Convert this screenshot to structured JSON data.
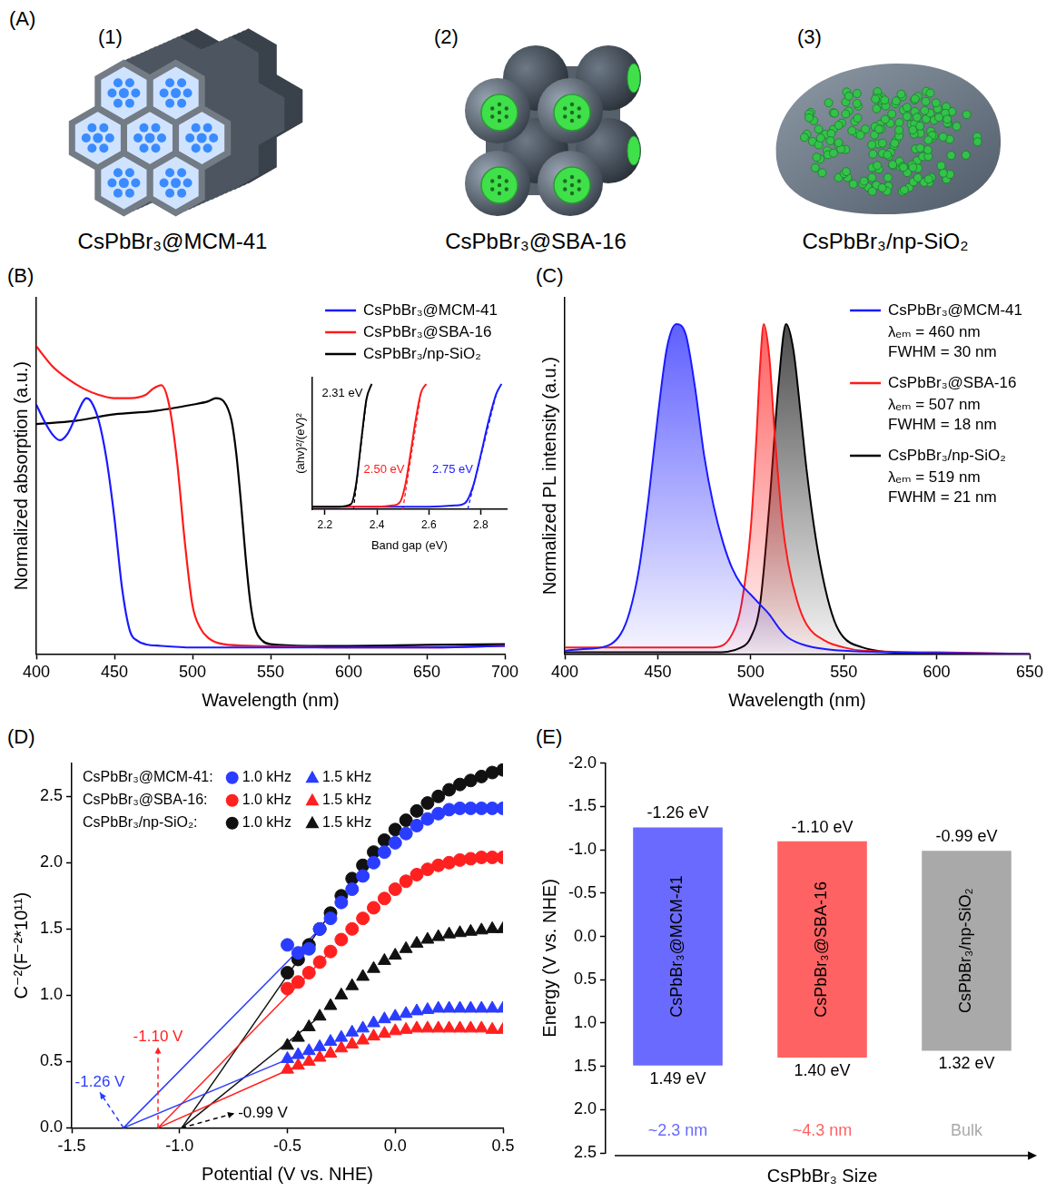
{
  "diagram": {
    "panel_label": "(A)",
    "items": [
      {
        "number": "(1)",
        "caption": "CsPbBr₃@MCM-41"
      },
      {
        "number": "(2)",
        "caption": "CsPbBr₃@SBA-16"
      },
      {
        "number": "(3)",
        "caption": "CsPbBr₃/np-SiO₂"
      }
    ]
  },
  "chart_data": [
    {
      "panel_label": "(B)",
      "type": "line",
      "x_label": "Wavelength (nm)",
      "y_label": "Normalized absorption (a.u.)",
      "xlim": [
        400,
        700
      ],
      "xticks": [
        400,
        450,
        500,
        550,
        600,
        650,
        700
      ],
      "ylim": [
        0,
        1.1
      ],
      "tick_labels": "x",
      "grid": false,
      "legend": "upper right",
      "series": [
        {
          "name": "CsPbBr₃@MCM-41",
          "color": "#1a1aff",
          "x": [
            400,
            405,
            410,
            415,
            420,
            425,
            430,
            432,
            435,
            440,
            445,
            450,
            455,
            460,
            465,
            470,
            480,
            500,
            550,
            600,
            650,
            700
          ],
          "values": [
            0.77,
            0.72,
            0.68,
            0.66,
            0.68,
            0.73,
            0.78,
            0.79,
            0.78,
            0.72,
            0.6,
            0.42,
            0.2,
            0.07,
            0.04,
            0.03,
            0.025,
            0.02,
            0.02,
            0.02,
            0.02,
            0.025
          ]
        },
        {
          "name": "CsPbBr₃@SBA-16",
          "color": "#ff1a1a",
          "x": [
            400,
            410,
            420,
            430,
            440,
            450,
            460,
            470,
            475,
            480,
            485,
            490,
            495,
            500,
            505,
            510,
            520,
            540,
            600,
            650,
            700
          ],
          "values": [
            0.95,
            0.89,
            0.85,
            0.82,
            0.8,
            0.79,
            0.79,
            0.8,
            0.82,
            0.83,
            0.77,
            0.6,
            0.35,
            0.15,
            0.08,
            0.05,
            0.03,
            0.025,
            0.02,
            0.02,
            0.025
          ]
        },
        {
          "name": "CsPbBr₃/np-SiO₂",
          "color": "#000000",
          "x": [
            400,
            425,
            450,
            475,
            500,
            510,
            515,
            520,
            525,
            528,
            531,
            534,
            537,
            540,
            545,
            550,
            575,
            600,
            650,
            700
          ],
          "values": [
            0.71,
            0.72,
            0.74,
            0.75,
            0.77,
            0.78,
            0.79,
            0.78,
            0.72,
            0.62,
            0.47,
            0.3,
            0.16,
            0.08,
            0.04,
            0.03,
            0.025,
            0.025,
            0.028,
            0.03
          ]
        }
      ],
      "inset": {
        "type": "line",
        "x_label": "Band gap (eV)",
        "y_label": "(ahν)²/(eV)²",
        "xlim": [
          2.15,
          2.9
        ],
        "xticks": [
          2.2,
          2.4,
          2.6,
          2.8
        ],
        "ylim": [
          0,
          1.05
        ],
        "tick_labels": "x",
        "grid": false,
        "series": [
          {
            "color": "#000000",
            "x": [
              2.15,
              2.2,
              2.25,
              2.3,
              2.32,
              2.34,
              2.36,
              2.38
            ],
            "values": [
              0.02,
              0.02,
              0.02,
              0.04,
              0.2,
              0.55,
              0.88,
              1.0
            ],
            "annotation": {
              "text": "2.31 eV",
              "x": 2.31
            }
          },
          {
            "color": "#ff1a1a",
            "x": [
              2.15,
              2.3,
              2.4,
              2.46,
              2.49,
              2.51,
              2.53,
              2.55,
              2.57,
              2.59
            ],
            "values": [
              0.02,
              0.02,
              0.02,
              0.03,
              0.06,
              0.2,
              0.45,
              0.72,
              0.93,
              1.0
            ],
            "annotation": {
              "text": "2.50 eV",
              "x": 2.5
            }
          },
          {
            "color": "#1a1aff",
            "x": [
              2.15,
              2.4,
              2.6,
              2.7,
              2.74,
              2.77,
              2.8,
              2.83,
              2.86,
              2.88
            ],
            "values": [
              0.02,
              0.02,
              0.02,
              0.03,
              0.05,
              0.18,
              0.43,
              0.7,
              0.92,
              1.0
            ],
            "annotation": {
              "text": "2.75 eV",
              "x": 2.75
            }
          }
        ]
      }
    },
    {
      "panel_label": "(C)",
      "type": "area",
      "x_label": "Wavelength (nm)",
      "y_label": "Normalized PL intensity (a.u.)",
      "xlim": [
        400,
        650
      ],
      "xticks": [
        400,
        450,
        500,
        550,
        600,
        650
      ],
      "ylim": [
        0,
        1.08
      ],
      "tick_labels": "x",
      "grid": false,
      "legend": "upper right",
      "series": [
        {
          "name": "CsPbBr₃@MCM-41",
          "color": "#1a1aff",
          "annotations": [
            "λₑₘ = 460 nm",
            "FWHM = 30 nm"
          ],
          "x": [
            400,
            410,
            420,
            430,
            435,
            440,
            445,
            450,
            455,
            460,
            465,
            470,
            475,
            480,
            485,
            490,
            495,
            500,
            505,
            510,
            515,
            520,
            530,
            540,
            550,
            575,
            600,
            650
          ],
          "values": [
            0.01,
            0.015,
            0.02,
            0.06,
            0.13,
            0.26,
            0.47,
            0.72,
            0.93,
            1.0,
            0.97,
            0.81,
            0.6,
            0.45,
            0.34,
            0.26,
            0.21,
            0.18,
            0.15,
            0.12,
            0.08,
            0.05,
            0.025,
            0.015,
            0.01,
            0.005,
            0.003,
            0.0
          ]
        },
        {
          "name": "CsPbBr₃@SBA-16",
          "color": "#ff1a1a",
          "annotations": [
            "λₑₘ = 507 nm",
            "FWHM = 18 nm"
          ],
          "x": [
            400,
            450,
            480,
            490,
            495,
            500,
            503,
            505,
            507,
            510,
            513,
            517,
            520,
            525,
            530,
            540,
            550,
            560,
            600,
            650
          ],
          "values": [
            0.02,
            0.02,
            0.02,
            0.06,
            0.15,
            0.38,
            0.65,
            0.87,
            1.0,
            0.9,
            0.66,
            0.4,
            0.28,
            0.16,
            0.09,
            0.04,
            0.02,
            0.01,
            0.005,
            0.0
          ]
        },
        {
          "name": "CsPbBr₃/np-SiO₂",
          "color": "#000000",
          "annotations": [
            "λₑₘ = 519 nm",
            "FWHM = 21 nm"
          ],
          "x": [
            400,
            480,
            495,
            500,
            505,
            510,
            515,
            519,
            523,
            527,
            530,
            535,
            540,
            545,
            550,
            560,
            575,
            600,
            650
          ],
          "values": [
            0.005,
            0.005,
            0.02,
            0.05,
            0.15,
            0.45,
            0.82,
            1.0,
            0.92,
            0.72,
            0.56,
            0.35,
            0.2,
            0.1,
            0.05,
            0.02,
            0.005,
            0.0,
            0.0
          ]
        }
      ]
    },
    {
      "panel_label": "(D)",
      "type": "scatter",
      "x_label": "Potential (V vs. NHE)",
      "y_label": "C⁻²(F⁻²*10¹¹)",
      "xlim": [
        -1.5,
        0.5
      ],
      "xticks": [
        -1.5,
        {
          "value": -1,
          "label": "-1.0"
        },
        -0.5,
        {
          "value": 0,
          "label": "0.0"
        },
        0.5
      ],
      "ylim": [
        0,
        2.75
      ],
      "yticks": [
        {
          "value": 0,
          "label": "0.0"
        },
        0.5,
        {
          "value": 1,
          "label": "1.0"
        },
        1.5,
        {
          "value": 2,
          "label": "2.0"
        },
        2.5
      ],
      "grid": false,
      "legend": "upper left",
      "x": [
        -0.5,
        -0.45,
        -0.4,
        -0.35,
        -0.3,
        -0.25,
        -0.2,
        -0.15,
        -0.1,
        -0.05,
        0,
        0.05,
        0.1,
        0.15,
        0.2,
        0.25,
        0.3,
        0.35,
        0.4,
        0.45,
        0.5
      ],
      "series": [
        {
          "group": "CsPbBr₃@MCM-41:",
          "name": "1.0 kHz",
          "marker": "circle",
          "color": "#2a3cff",
          "values": [
            1.38,
            1.32,
            1.35,
            1.5,
            1.58,
            1.7,
            1.8,
            1.9,
            2.0,
            2.08,
            2.15,
            2.22,
            2.28,
            2.33,
            2.37,
            2.4,
            2.41,
            2.41,
            2.41,
            2.41,
            2.41
          ],
          "fit": {
            "x": [
              -1.26,
              -0.35
            ],
            "y": [
              0,
              1.5
            ]
          }
        },
        {
          "group": "CsPbBr₃@MCM-41:",
          "name": "1.5 kHz",
          "marker": "triangle",
          "color": "#2a3cff",
          "values": [
            0.52,
            0.55,
            0.58,
            0.61,
            0.65,
            0.68,
            0.72,
            0.75,
            0.79,
            0.82,
            0.84,
            0.86,
            0.88,
            0.89,
            0.9,
            0.9,
            0.9,
            0.9,
            0.9,
            0.9,
            0.9
          ],
          "fit": {
            "x": [
              -1.26,
              -0.45
            ],
            "y": [
              0,
              0.55
            ]
          }
        },
        {
          "group": "CsPbBr₃@SBA-16:",
          "name": "1.0 kHz",
          "marker": "circle",
          "color": "#ff2020",
          "values": [
            1.05,
            1.1,
            1.17,
            1.25,
            1.33,
            1.42,
            1.5,
            1.58,
            1.66,
            1.73,
            1.8,
            1.86,
            1.91,
            1.95,
            1.98,
            2.0,
            2.02,
            2.03,
            2.04,
            2.04,
            2.04
          ],
          "fit": {
            "x": [
              -1.1,
              -0.3
            ],
            "y": [
              0,
              1.33
            ]
          }
        },
        {
          "group": "CsPbBr₃@SBA-16:",
          "name": "1.5 kHz",
          "marker": "triangle",
          "color": "#ff2020",
          "values": [
            0.44,
            0.47,
            0.5,
            0.53,
            0.56,
            0.6,
            0.63,
            0.66,
            0.69,
            0.71,
            0.73,
            0.74,
            0.75,
            0.75,
            0.75,
            0.75,
            0.75,
            0.75,
            0.75,
            0.74,
            0.74
          ],
          "fit": {
            "x": [
              -1.1,
              -0.45
            ],
            "y": [
              0,
              0.47
            ]
          }
        },
        {
          "group": "CsPbBr₃/np-SiO₂:",
          "name": "1.0 kHz",
          "marker": "circle",
          "color": "#111111",
          "values": [
            1.17,
            1.27,
            1.38,
            1.5,
            1.62,
            1.75,
            1.88,
            1.98,
            2.08,
            2.17,
            2.25,
            2.32,
            2.39,
            2.45,
            2.5,
            2.55,
            2.59,
            2.62,
            2.65,
            2.68,
            2.7
          ],
          "fit": {
            "x": [
              -0.99,
              -0.3
            ],
            "y": [
              0,
              1.62
            ]
          }
        },
        {
          "group": "CsPbBr₃/np-SiO₂:",
          "name": "1.5 kHz",
          "marker": "triangle",
          "color": "#111111",
          "values": [
            0.62,
            0.68,
            0.76,
            0.84,
            0.92,
            1.0,
            1.07,
            1.14,
            1.2,
            1.26,
            1.3,
            1.35,
            1.39,
            1.42,
            1.44,
            1.46,
            1.47,
            1.48,
            1.49,
            1.5,
            1.5
          ],
          "fit": {
            "x": [
              -0.99,
              -0.35
            ],
            "y": [
              0,
              0.84
            ]
          }
        }
      ],
      "annotations": [
        {
          "text": "-1.26 V",
          "x": -1.26,
          "color": "#2a3cff"
        },
        {
          "text": "-1.10 V",
          "x": -1.1,
          "color": "#ff2020"
        },
        {
          "text": "-0.99 V",
          "x": -0.99,
          "color": "#000000"
        }
      ]
    },
    {
      "panel_label": "(E)",
      "type": "bar",
      "x_label": "CsPbBr₃ Size",
      "y_label": "Energy (V vs. NHE)",
      "categories": [
        "CsPbBr₃@MCM-41",
        "CsPbBr₃@SBA-16",
        "CsPbBr₃/np-SiO₂"
      ],
      "values": [
        [
          -1.26,
          1.49
        ],
        [
          -1.1,
          1.4
        ],
        [
          -0.99,
          1.32
        ]
      ],
      "value_labels": [
        [
          "-1.26 eV",
          "1.49 eV"
        ],
        [
          "-1.10 eV",
          "1.40 eV"
        ],
        [
          "-0.99 eV",
          "1.32 eV"
        ]
      ],
      "size_labels": [
        "~2.3 nm",
        "~4.3 nm",
        "Bulk"
      ],
      "colors": [
        "#6a6aff",
        "#ff6262",
        "#a9a9a9"
      ],
      "ylim": [
        2.5,
        -2
      ],
      "yticks": [
        {
          "value": -2,
          "label": "-2.0"
        },
        -1.5,
        {
          "value": -1,
          "label": "-1.0"
        },
        -0.5,
        {
          "value": 0,
          "label": "0.0"
        },
        0.5,
        {
          "value": 1,
          "label": "1.0"
        },
        1.5,
        {
          "value": 2,
          "label": "2.0"
        },
        2.5
      ],
      "tick_labels": "y",
      "data_labels": true,
      "grid": false
    }
  ]
}
